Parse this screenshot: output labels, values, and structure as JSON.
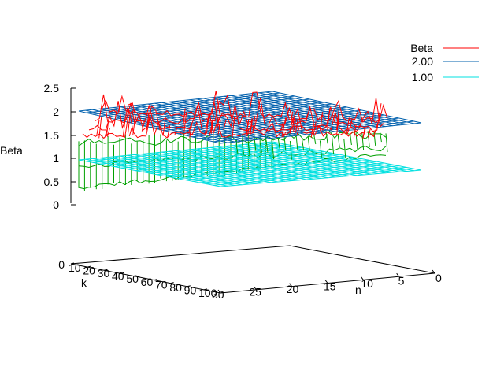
{
  "chart_data": {
    "type": "surface",
    "title": "",
    "zlabel": "Beta",
    "xlabel": "k",
    "ylabel": "n",
    "z_ticks": [
      "2.5",
      "2",
      "1.5",
      "1",
      "0.5",
      "0"
    ],
    "z_floor_label": "0",
    "k_ticks": [
      "10",
      "20",
      "30",
      "40",
      "50",
      "60",
      "70",
      "80",
      "90",
      "100"
    ],
    "n_ticks": [
      "30",
      "25",
      "20",
      "15",
      "10",
      "5",
      "0"
    ],
    "k_range": [
      10,
      100
    ],
    "n_range": [
      0,
      30
    ],
    "z_range": [
      0,
      2.5
    ],
    "legend_position": "top-right",
    "legend": [
      {
        "label": "Beta",
        "color": "#ff0000"
      },
      {
        "label": "2.00",
        "color": "#0060ad"
      },
      {
        "label": "1.00",
        "color": "#00e0e0"
      }
    ],
    "series": [
      {
        "name": "Beta",
        "kind": "measured surface",
        "typical_z": [
          0.4,
          2.4
        ]
      },
      {
        "name": "2.00",
        "kind": "constant plane",
        "z": 2.0
      },
      {
        "name": "1.00",
        "kind": "constant plane",
        "z": 1.0
      }
    ]
  }
}
